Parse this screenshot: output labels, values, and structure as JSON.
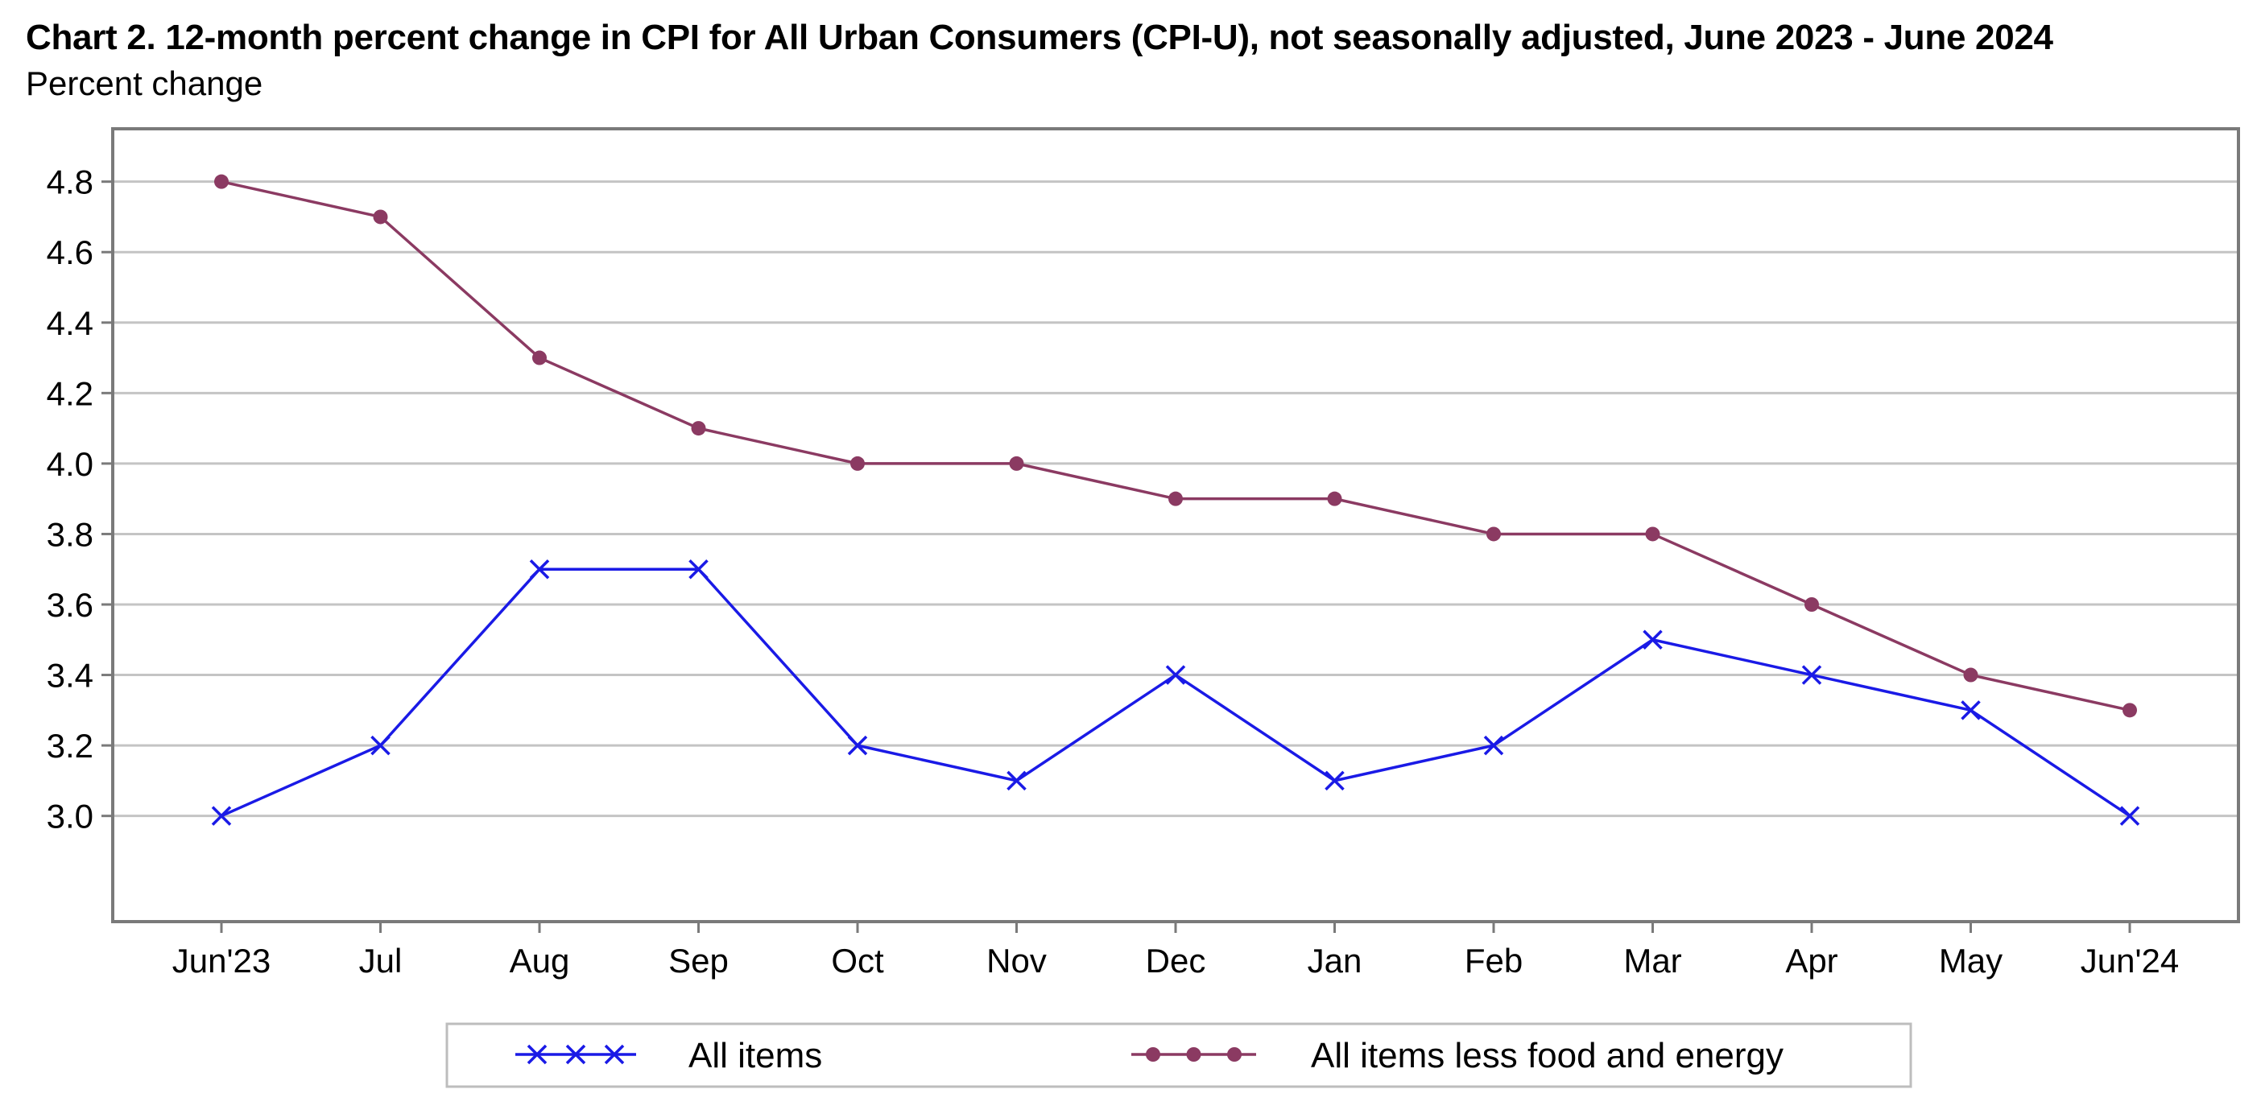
{
  "chart_data": {
    "type": "line",
    "title": "Chart 2. 12-month percent change in CPI for All Urban Consumers (CPI-U), not seasonally adjusted, June 2023 - June 2024",
    "ylabel": "Percent change",
    "xlabel": "",
    "categories": [
      "Jun'23",
      "Jul",
      "Aug",
      "Sep",
      "Oct",
      "Nov",
      "Dec",
      "Jan",
      "Feb",
      "Mar",
      "Apr",
      "May",
      "Jun'24"
    ],
    "ylim": [
      2.7,
      4.95
    ],
    "yticks": [
      3.0,
      3.2,
      3.4,
      3.6,
      3.8,
      4.0,
      4.2,
      4.4,
      4.6,
      4.8
    ],
    "ytick_labels": [
      "3.0",
      "3.2",
      "3.4",
      "3.6",
      "3.8",
      "4.0",
      "4.2",
      "4.4",
      "4.6",
      "4.8"
    ],
    "grid": "horizontal",
    "legend_position": "bottom",
    "series": [
      {
        "name": "All items",
        "marker": "x",
        "color": "#1a1ae6",
        "values": [
          3.0,
          3.2,
          3.7,
          3.7,
          3.2,
          3.1,
          3.4,
          3.1,
          3.2,
          3.5,
          3.4,
          3.3,
          3.0
        ]
      },
      {
        "name": "All items less food and energy",
        "marker": "circle",
        "color": "#8b3a62",
        "values": [
          4.8,
          4.7,
          4.3,
          4.1,
          4.0,
          4.0,
          3.9,
          3.9,
          3.8,
          3.8,
          3.6,
          3.4,
          3.3
        ]
      }
    ]
  }
}
